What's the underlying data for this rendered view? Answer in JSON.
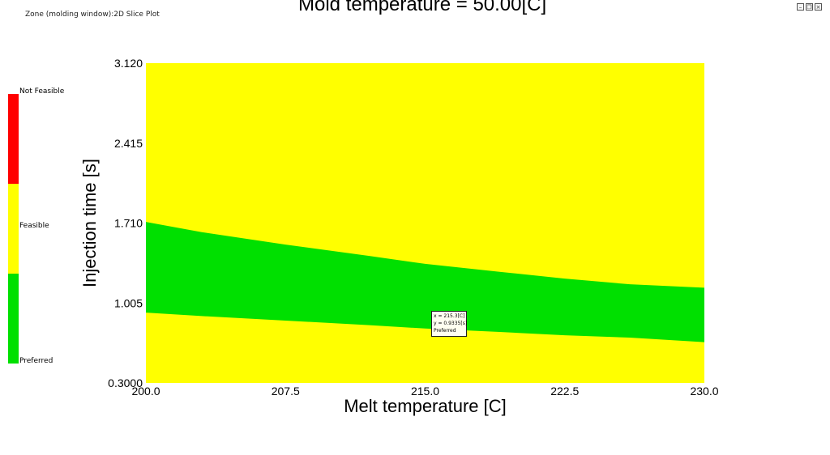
{
  "window": {
    "caption": "Zone (molding window):2D Slice Plot",
    "controls": [
      "minimize-icon",
      "restore-icon",
      "close-icon"
    ]
  },
  "legend": {
    "items": [
      {
        "label": "Not Feasible",
        "color": "#ff0000"
      },
      {
        "label": "Feasible",
        "color": "#ffff00"
      },
      {
        "label": "Preferred",
        "color": "#00e000"
      }
    ]
  },
  "tooltip": {
    "x_text": "x = 215.3[C]",
    "y_text": "y = 0.9335[s]",
    "status": "Preferred"
  },
  "chart_data": {
    "type": "heatmap",
    "title": "Mold temperature = 50.00[C]",
    "xlabel": "Melt temperature [C]",
    "ylabel": "Injection time [s]",
    "xlim": [
      200.0,
      230.0
    ],
    "ylim": [
      0.3,
      3.12
    ],
    "x_ticks": [
      "200.0",
      "207.5",
      "215.0",
      "222.5",
      "230.0"
    ],
    "y_ticks": [
      "3.120",
      "2.415",
      "1.710",
      "1.005",
      "0.3000"
    ],
    "background_zone": "Feasible",
    "colors": {
      "feasible": "#ffff00",
      "preferred": "#00e000",
      "not_feasible": "#ff0000"
    },
    "preferred_region": {
      "x": [
        200.0,
        203.0,
        207.5,
        212.0,
        215.0,
        219.0,
        222.5,
        226.0,
        230.0
      ],
      "y_upper": [
        1.72,
        1.63,
        1.52,
        1.42,
        1.35,
        1.28,
        1.22,
        1.17,
        1.14
      ],
      "y_lower": [
        0.92,
        0.89,
        0.85,
        0.81,
        0.78,
        0.75,
        0.72,
        0.7,
        0.66
      ]
    },
    "cursor_point": {
      "x": 215.3,
      "y": 0.9335,
      "zone": "Preferred"
    }
  }
}
